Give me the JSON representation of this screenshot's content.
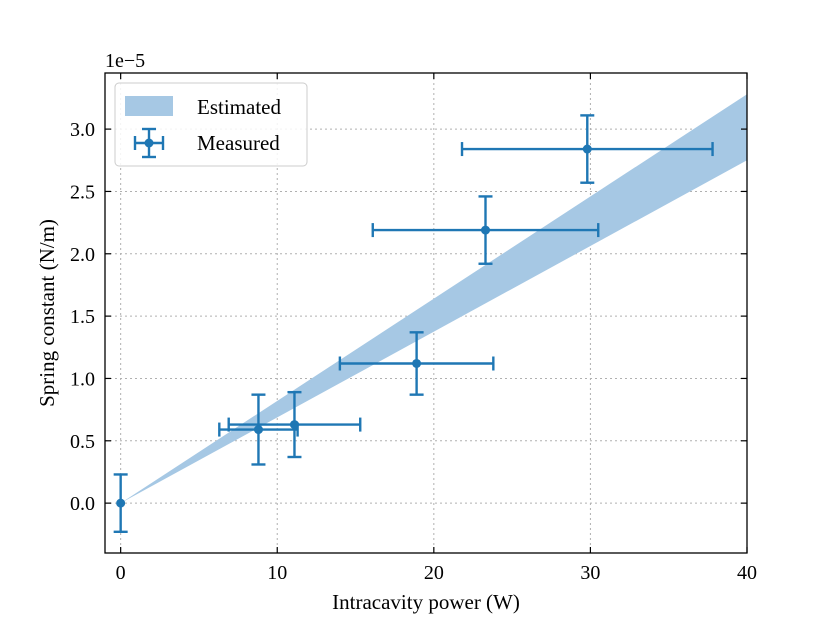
{
  "chart_data": {
    "type": "scatter",
    "xlabel": "Intracavity power (W)",
    "ylabel": "Spring constant (N/m)",
    "y_scale_label": "1e−5",
    "xlim": [
      -1,
      40
    ],
    "ylim": [
      -0.4,
      3.45
    ],
    "x_ticks": [
      0,
      10,
      20,
      30,
      40
    ],
    "x_tick_labels": [
      "0",
      "10",
      "20",
      "30",
      "40"
    ],
    "y_ticks": [
      0.0,
      0.5,
      1.0,
      1.5,
      2.0,
      2.5,
      3.0
    ],
    "y_tick_labels": [
      "0.0",
      "0.5",
      "1.0",
      "1.5",
      "2.0",
      "2.5",
      "3.0"
    ],
    "grid": true,
    "legend_position": "top-left",
    "colors": {
      "measured": "#1f77b4",
      "estimated": "#a6c8e4"
    },
    "series": [
      {
        "name": "Estimated",
        "kind": "band",
        "x": [
          0,
          40
        ],
        "lower": [
          0.0,
          2.75
        ],
        "upper": [
          0.0,
          3.28
        ]
      },
      {
        "name": "Measured",
        "kind": "errorbar",
        "points": [
          {
            "x": 0.0,
            "y": 0.0,
            "xerr": 0.0,
            "yerr": 0.23
          },
          {
            "x": 8.8,
            "y": 0.59,
            "xerr": 2.5,
            "yerr": 0.28
          },
          {
            "x": 11.1,
            "y": 0.63,
            "xerr": 4.2,
            "yerr": 0.26
          },
          {
            "x": 18.9,
            "y": 1.12,
            "xerr": 4.9,
            "yerr": 0.25
          },
          {
            "x": 23.3,
            "y": 2.19,
            "xerr": 7.2,
            "yerr": 0.27
          },
          {
            "x": 29.8,
            "y": 2.84,
            "xerr": 8.0,
            "yerr": 0.27
          }
        ]
      }
    ]
  }
}
